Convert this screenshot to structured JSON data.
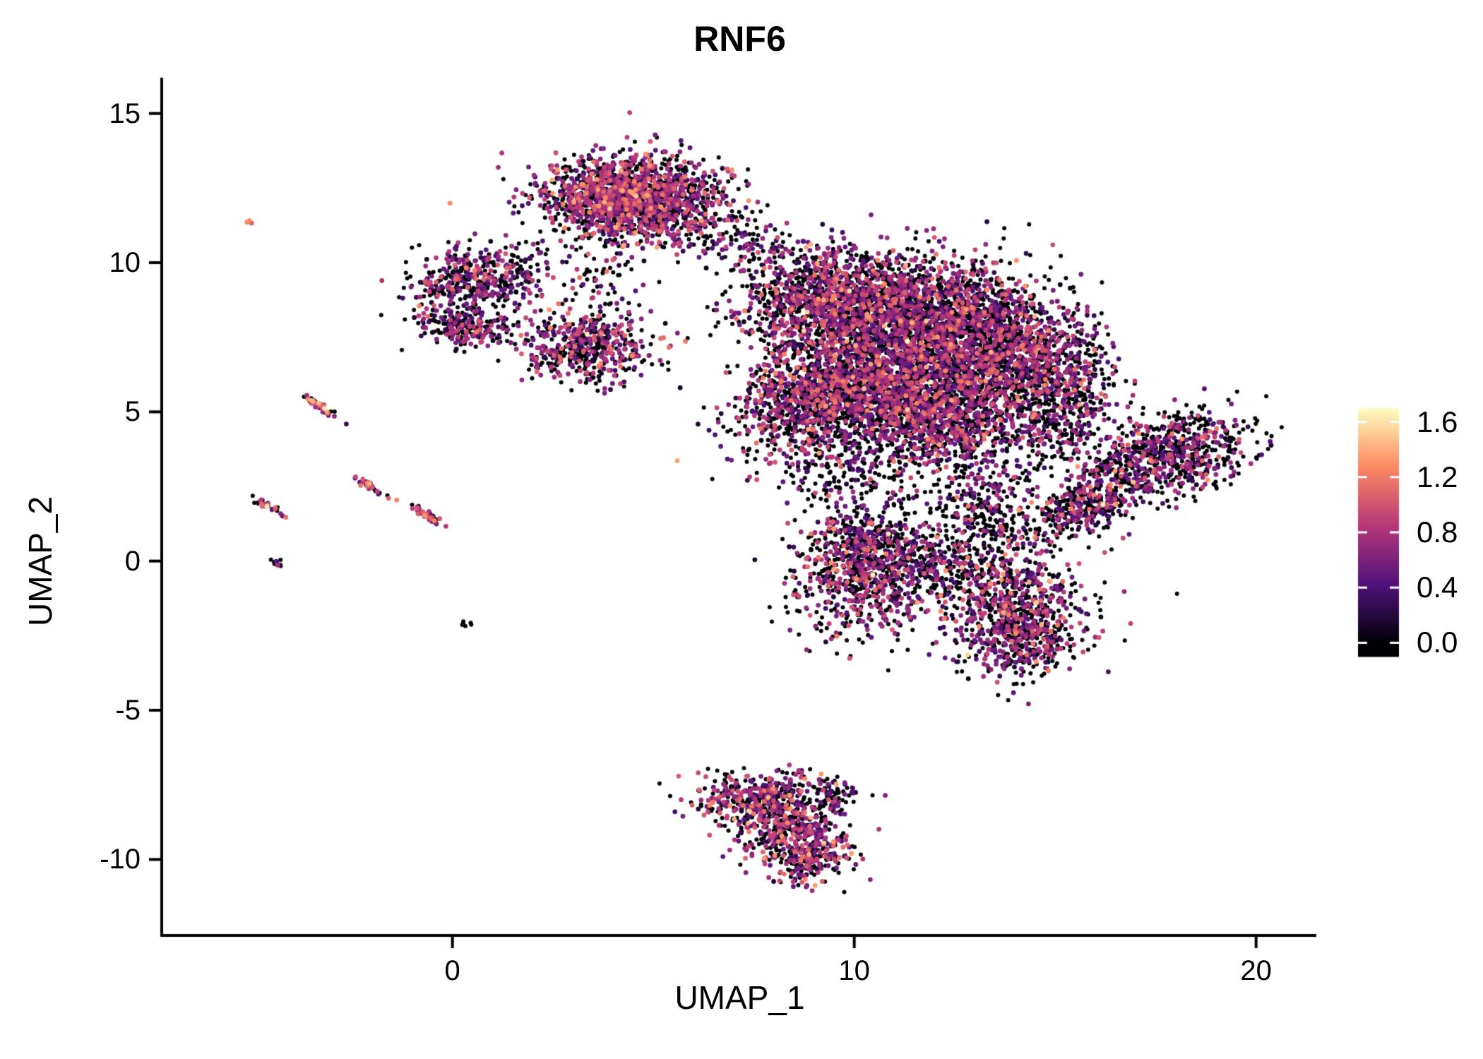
{
  "figure": {
    "background": "#ffffff",
    "axis_color": "#000000",
    "text_color": "#000000"
  },
  "chart_data": {
    "type": "scatter",
    "title": "RNF6",
    "xlabel": "UMAP_1",
    "ylabel": "UMAP_2",
    "xlim": [
      -7.2,
      21.5
    ],
    "ylim": [
      -12.5,
      16.2
    ],
    "grid": false,
    "legend_position": "right",
    "xticks": [
      {
        "value": 0,
        "label": "0"
      },
      {
        "value": 10,
        "label": "10"
      },
      {
        "value": 20,
        "label": "20"
      }
    ],
    "yticks": [
      {
        "value": -10,
        "label": "-10"
      },
      {
        "value": -5,
        "label": "-5"
      },
      {
        "value": 0,
        "label": "0"
      },
      {
        "value": 5,
        "label": "5"
      },
      {
        "value": 10,
        "label": "10"
      },
      {
        "value": 15,
        "label": "15"
      }
    ],
    "colorbar": {
      "ticks": [
        {
          "value": 0.0,
          "label": "0.0"
        },
        {
          "value": 0.4,
          "label": "0.4"
        },
        {
          "value": 0.8,
          "label": "0.8"
        },
        {
          "value": 1.2,
          "label": "1.2"
        },
        {
          "value": 1.6,
          "label": "1.6"
        }
      ],
      "range": [
        -0.1,
        1.7
      ],
      "vmax": 1.7,
      "colormap": "magma",
      "stops": [
        [
          0.0,
          "#000004"
        ],
        [
          0.25,
          "#51127c"
        ],
        [
          0.5,
          "#b73779"
        ],
        [
          0.75,
          "#fc8961"
        ],
        [
          1.0,
          "#fcfdbf"
        ]
      ]
    },
    "point_radius": 3.0,
    "point_radius_expressing": 3.4,
    "clusters": [
      {
        "name": "north",
        "cx": 4.35,
        "cy": 12.2,
        "sx": 1.05,
        "sy": 0.7,
        "n": 1700,
        "zero_frac": 0.45,
        "mean": 0.7
      },
      {
        "name": "north-east-tail",
        "cx": 6.3,
        "cy": 11.3,
        "sx": 0.7,
        "sy": 0.6,
        "n": 130,
        "zero_frac": 0.55,
        "mean": 0.6
      },
      {
        "name": "north-bridge",
        "cx": 7.6,
        "cy": 10.6,
        "sx": 0.55,
        "sy": 0.4,
        "n": 60,
        "zero_frac": 0.6,
        "mean": 0.55
      },
      {
        "name": "west-upper",
        "cx": 0.55,
        "cy": 9.4,
        "sx": 0.8,
        "sy": 0.5,
        "n": 420,
        "zero_frac": 0.5,
        "mean": 0.6
      },
      {
        "name": "west-lower",
        "cx": 0.3,
        "cy": 7.9,
        "sx": 0.6,
        "sy": 0.35,
        "n": 230,
        "zero_frac": 0.5,
        "mean": 0.6
      },
      {
        "name": "west-strand",
        "cx": 3.8,
        "cy": 9.2,
        "sx": 0.5,
        "sy": 0.8,
        "n": 70,
        "zero_frac": 0.6,
        "mean": 0.5
      },
      {
        "name": "west-bridge",
        "cx": 1.9,
        "cy": 10.2,
        "sx": 0.4,
        "sy": 0.3,
        "n": 25,
        "zero_frac": 0.6,
        "mean": 0.5
      },
      {
        "name": "mid-left",
        "cx": 3.3,
        "cy": 7.2,
        "sx": 0.8,
        "sy": 0.6,
        "n": 480,
        "zero_frac": 0.45,
        "mean": 0.65
      },
      {
        "name": "main-nw",
        "cx": 9.3,
        "cy": 8.7,
        "sx": 1.05,
        "sy": 0.85,
        "n": 1100,
        "zero_frac": 0.5,
        "mean": 0.65
      },
      {
        "name": "main-n",
        "cx": 11.5,
        "cy": 8.4,
        "sx": 1.25,
        "sy": 0.95,
        "n": 1400,
        "zero_frac": 0.5,
        "mean": 0.65
      },
      {
        "name": "main-ne",
        "cx": 13.3,
        "cy": 7.4,
        "sx": 0.95,
        "sy": 0.95,
        "n": 950,
        "zero_frac": 0.5,
        "mean": 0.65
      },
      {
        "name": "main-w",
        "cx": 10.3,
        "cy": 6.0,
        "sx": 1.25,
        "sy": 1.05,
        "n": 1400,
        "zero_frac": 0.48,
        "mean": 0.68
      },
      {
        "name": "main-c",
        "cx": 12.3,
        "cy": 5.3,
        "sx": 1.15,
        "sy": 0.95,
        "n": 1100,
        "zero_frac": 0.5,
        "mean": 0.65
      },
      {
        "name": "main-sw",
        "cx": 8.6,
        "cy": 5.0,
        "sx": 0.75,
        "sy": 0.85,
        "n": 450,
        "zero_frac": 0.5,
        "mean": 0.65
      },
      {
        "name": "main-e",
        "cx": 14.7,
        "cy": 6.4,
        "sx": 0.65,
        "sy": 1.15,
        "n": 380,
        "zero_frac": 0.55,
        "mean": 0.6
      },
      {
        "name": "main-e2",
        "cx": 15.5,
        "cy": 5.9,
        "sx": 0.55,
        "sy": 1.2,
        "n": 300,
        "zero_frac": 0.55,
        "mean": 0.6
      },
      {
        "name": "main-s-sparse",
        "cx": 11.4,
        "cy": 3.9,
        "sx": 1.8,
        "sy": 0.75,
        "n": 380,
        "zero_frac": 0.6,
        "mean": 0.55
      },
      {
        "name": "main-s-sparse2",
        "cx": 10.0,
        "cy": 2.6,
        "sx": 0.9,
        "sy": 0.6,
        "n": 120,
        "zero_frac": 0.65,
        "mean": 0.5
      },
      {
        "name": "stem",
        "cx": 13.3,
        "cy": 1.6,
        "sx": 0.6,
        "sy": 0.9,
        "n": 280,
        "zero_frac": 0.55,
        "mean": 0.6
      },
      {
        "name": "south-bridge",
        "cx": 12.0,
        "cy": -0.2,
        "sx": 0.8,
        "sy": 0.55,
        "n": 250,
        "zero_frac": 0.55,
        "mean": 0.6
      },
      {
        "name": "south-left",
        "cx": 10.2,
        "cy": -0.5,
        "sx": 0.85,
        "sy": 1.05,
        "n": 650,
        "zero_frac": 0.5,
        "mean": 0.65
      },
      {
        "name": "south-left-upper",
        "cx": 10.3,
        "cy": 0.7,
        "sx": 0.7,
        "sy": 0.55,
        "n": 220,
        "zero_frac": 0.55,
        "mean": 0.6
      },
      {
        "name": "south-right",
        "cx": 13.9,
        "cy": -1.5,
        "sx": 0.9,
        "sy": 1.1,
        "n": 700,
        "zero_frac": 0.5,
        "mean": 0.65
      },
      {
        "name": "south-right-low",
        "cx": 14.3,
        "cy": -2.6,
        "sx": 0.6,
        "sy": 0.55,
        "n": 250,
        "zero_frac": 0.5,
        "mean": 0.65
      },
      {
        "name": "wing-main",
        "cx": 17.8,
        "cy": 3.5,
        "sx": 1.1,
        "sy": 0.65,
        "angle": 25,
        "n": 700,
        "zero_frac": 0.52,
        "mean": 0.62
      },
      {
        "name": "wing-tail",
        "cx": 15.7,
        "cy": 1.9,
        "sx": 0.8,
        "sy": 0.45,
        "angle": 40,
        "n": 350,
        "zero_frac": 0.52,
        "mean": 0.62
      },
      {
        "name": "wing-bridge",
        "cx": 15.1,
        "cy": 4.4,
        "sx": 0.5,
        "sy": 0.55,
        "n": 60,
        "zero_frac": 0.6,
        "mean": 0.55
      },
      {
        "name": "bottom-a",
        "cx": 7.5,
        "cy": -7.9,
        "sx": 0.85,
        "sy": 0.45,
        "n": 330,
        "zero_frac": 0.45,
        "mean": 0.7
      },
      {
        "name": "bottom-b",
        "cx": 8.4,
        "cy": -8.9,
        "sx": 0.7,
        "sy": 0.75,
        "n": 450,
        "zero_frac": 0.45,
        "mean": 0.7
      },
      {
        "name": "bottom-c",
        "cx": 8.9,
        "cy": -9.9,
        "sx": 0.45,
        "sy": 0.45,
        "n": 170,
        "zero_frac": 0.45,
        "mean": 0.7
      },
      {
        "name": "bottom-tip",
        "cx": 9.5,
        "cy": -7.8,
        "sx": 0.28,
        "sy": 0.22,
        "n": 50,
        "zero_frac": 0.5,
        "mean": 0.6
      },
      {
        "name": "streak-a",
        "cx": -3.25,
        "cy": 5.15,
        "sx": 0.3,
        "sy": 0.055,
        "angle": -40,
        "n": 40,
        "zero_frac": 0.3,
        "mean": 0.85,
        "sd": 0.4
      },
      {
        "name": "streak-b",
        "cx": -4.55,
        "cy": 1.8,
        "sx": 0.26,
        "sy": 0.055,
        "angle": -40,
        "n": 34,
        "zero_frac": 0.3,
        "mean": 0.8,
        "sd": 0.4
      },
      {
        "name": "streak-c",
        "cx": -2.1,
        "cy": 2.55,
        "sx": 0.26,
        "sy": 0.055,
        "angle": -40,
        "n": 34,
        "zero_frac": 0.3,
        "mean": 0.8,
        "sd": 0.4
      },
      {
        "name": "streak-d",
        "cx": -0.6,
        "cy": 1.5,
        "sx": 0.3,
        "sy": 0.06,
        "angle": -40,
        "n": 40,
        "zero_frac": 0.35,
        "mean": 0.75,
        "sd": 0.4
      },
      {
        "name": "dot-left",
        "cx": -4.35,
        "cy": -0.1,
        "sx": 0.1,
        "sy": 0.05,
        "angle": -40,
        "n": 10,
        "zero_frac": 0.5,
        "mean": 0.5
      },
      {
        "name": "dot-low",
        "cx": 0.35,
        "cy": -2.1,
        "sx": 0.07,
        "sy": 0.05,
        "n": 6,
        "zero_frac": 0.8,
        "mean": 0.4
      },
      {
        "name": "dot-orange",
        "cx": -5.05,
        "cy": 11.4,
        "sx": 0.06,
        "sy": 0.05,
        "n": 4,
        "zero_frac": 0.0,
        "mean": 1.15,
        "sd": 0.15
      }
    ]
  }
}
